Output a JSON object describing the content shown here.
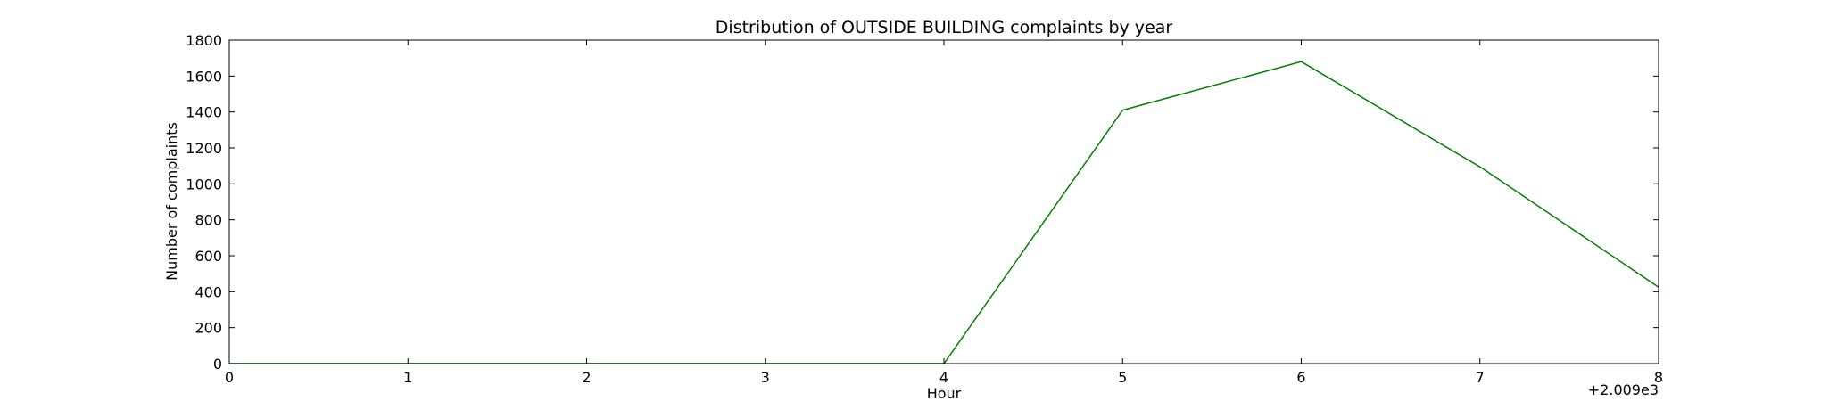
{
  "chart_data": {
    "type": "line",
    "title": "Distribution of  OUTSIDE BUILDING complaints by year",
    "xlabel": "Hour",
    "ylabel": "Number of complaints",
    "x_offset_label": "+2.009e3",
    "xlim": [
      0,
      8
    ],
    "ylim": [
      0,
      1800
    ],
    "x_ticks": [
      0,
      1,
      2,
      3,
      4,
      5,
      6,
      7,
      8
    ],
    "y_ticks": [
      0,
      200,
      400,
      600,
      800,
      1000,
      1200,
      1400,
      1600,
      1800
    ],
    "grid": false,
    "series": [
      {
        "color": "#008000",
        "x": [
          0,
          1,
          2,
          3,
          4,
          5,
          6,
          7,
          8
        ],
        "values": [
          0,
          0,
          0,
          0,
          0,
          1410,
          1680,
          1095,
          425
        ]
      }
    ]
  }
}
